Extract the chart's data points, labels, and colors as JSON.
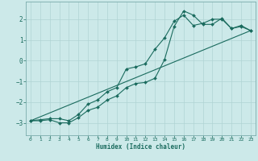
{
  "title": "",
  "xlabel": "Humidex (Indice chaleur)",
  "bg_color": "#cce9e9",
  "line_color": "#1a6b5e",
  "grid_color": "#b0d4d4",
  "xlim": [
    -0.5,
    23.5
  ],
  "ylim": [
    -3.6,
    2.85
  ],
  "xticks": [
    0,
    1,
    2,
    3,
    4,
    5,
    6,
    7,
    8,
    9,
    10,
    11,
    12,
    13,
    14,
    15,
    16,
    17,
    18,
    19,
    20,
    21,
    22,
    23
  ],
  "yticks": [
    -3,
    -2,
    -1,
    0,
    1,
    2
  ],
  "curve1_x": [
    0,
    1,
    2,
    3,
    4,
    5,
    6,
    7,
    8,
    9,
    10,
    11,
    12,
    13,
    14,
    15,
    16,
    17,
    18,
    19,
    20,
    21,
    22,
    23
  ],
  "curve1_y": [
    -2.9,
    -2.85,
    -2.8,
    -2.8,
    -2.9,
    -2.6,
    -2.1,
    -1.9,
    -1.5,
    -1.3,
    -0.4,
    -0.3,
    -0.15,
    0.55,
    1.1,
    1.9,
    2.2,
    1.7,
    1.8,
    2.0,
    2.0,
    1.55,
    1.65,
    1.45
  ],
  "curve2_x": [
    0,
    1,
    2,
    3,
    4,
    5,
    6,
    7,
    8,
    9,
    10,
    11,
    12,
    13,
    14,
    15,
    16,
    17,
    18,
    19,
    20,
    21,
    22,
    23
  ],
  "curve2_y": [
    -2.9,
    -2.9,
    -2.85,
    -3.0,
    -3.0,
    -2.75,
    -2.4,
    -2.25,
    -1.9,
    -1.7,
    -1.3,
    -1.1,
    -1.05,
    -0.85,
    0.05,
    1.65,
    2.4,
    2.2,
    1.75,
    1.75,
    2.05,
    1.55,
    1.7,
    1.45
  ],
  "line_x": [
    0,
    23
  ],
  "line_y": [
    -2.9,
    1.45
  ]
}
